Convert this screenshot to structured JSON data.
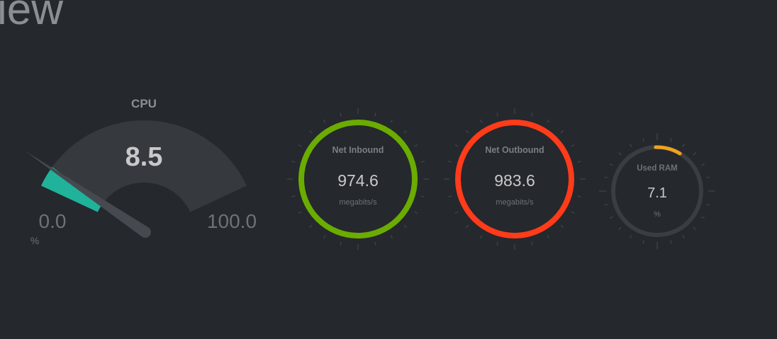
{
  "header": {
    "title": "iew"
  },
  "cpu_gauge": {
    "label": "CPU",
    "value": "8.5",
    "min": "0.0",
    "max": "100.0",
    "unit": "%",
    "fraction": 0.085,
    "fill_color": "#20b29a"
  },
  "net_inbound": {
    "label": "Net Inbound",
    "value": "974.6",
    "unit": "megabits/s",
    "ring_color": "#6aac00"
  },
  "net_outbound": {
    "label": "Net Outbound",
    "value": "983.6",
    "unit": "megabits/s",
    "ring_color": "#ff3b1a"
  },
  "used_ram": {
    "label": "Used RAM",
    "value": "7.1",
    "unit": "%",
    "fraction": 0.071,
    "arc_color": "#f0a21c"
  }
}
